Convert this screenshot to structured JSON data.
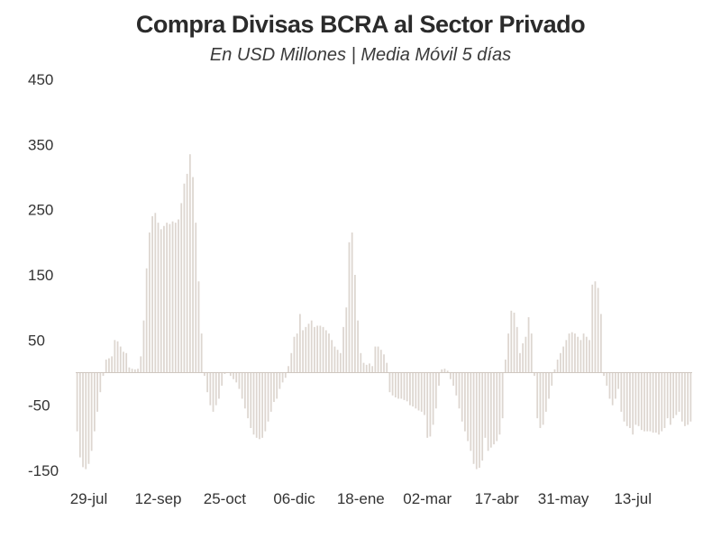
{
  "chart_data": {
    "type": "bar",
    "title": "Compra Divisas BCRA al Sector Privado",
    "subtitle": "En USD Millones | Media Móvil 5 días",
    "xlabel": "",
    "ylabel": "",
    "ylim": [
      -150,
      450
    ],
    "yticks": [
      "450",
      "350",
      "250",
      "150",
      "50",
      "-50",
      "-150"
    ],
    "ytick_values": [
      450,
      350,
      250,
      150,
      50,
      -50,
      -150
    ],
    "xtick_labels": [
      "29-jul",
      "12-sep",
      "25-oct",
      "06-dic",
      "18-ene",
      "02-mar",
      "17-abr",
      "31-may",
      "13-jul"
    ],
    "xtick_index": [
      4,
      28,
      51,
      75,
      98,
      121,
      145,
      168,
      192
    ],
    "bar_color": "#ddd6d0",
    "series": [
      {
        "name": "Media Móvil 5 días",
        "values": [
          -90,
          -130,
          -145,
          -148,
          -140,
          -120,
          -90,
          -60,
          -30,
          -5,
          20,
          22,
          25,
          50,
          48,
          40,
          32,
          30,
          8,
          6,
          5,
          6,
          25,
          80,
          160,
          215,
          240,
          245,
          230,
          220,
          225,
          230,
          228,
          232,
          230,
          235,
          260,
          290,
          305,
          335,
          300,
          230,
          140,
          60,
          -5,
          -30,
          -50,
          -60,
          -50,
          -40,
          -20,
          -2,
          0,
          -5,
          -10,
          -15,
          -25,
          -40,
          -55,
          -70,
          -85,
          -95,
          -100,
          -102,
          -100,
          -90,
          -75,
          -60,
          -45,
          -40,
          -25,
          -15,
          -8,
          10,
          30,
          55,
          60,
          90,
          65,
          70,
          75,
          80,
          70,
          72,
          72,
          70,
          65,
          60,
          50,
          40,
          35,
          30,
          70,
          100,
          200,
          215,
          150,
          80,
          30,
          15,
          12,
          14,
          10,
          40,
          40,
          35,
          28,
          15,
          -30,
          -35,
          -38,
          -40,
          -40,
          -42,
          -44,
          -50,
          -52,
          -55,
          -58,
          -60,
          -65,
          -100,
          -98,
          -80,
          -55,
          -20,
          5,
          6,
          3,
          -10,
          -20,
          -35,
          -55,
          -75,
          -90,
          -105,
          -120,
          -140,
          -148,
          -146,
          -135,
          -100,
          -120,
          -115,
          -110,
          -105,
          -95,
          -70,
          20,
          60,
          95,
          92,
          70,
          30,
          45,
          55,
          85,
          60,
          -5,
          -70,
          -85,
          -80,
          -60,
          -40,
          -20,
          5,
          20,
          30,
          40,
          50,
          60,
          62,
          60,
          55,
          50,
          60,
          55,
          50,
          135,
          140,
          130,
          90,
          -5,
          -20,
          -40,
          -50,
          -40,
          -25,
          -60,
          -75,
          -82,
          -85,
          -95,
          -80,
          -82,
          -88,
          -90,
          -90,
          -90,
          -92,
          -92,
          -95,
          -90,
          -85,
          -70,
          -80,
          -70,
          -65,
          -60,
          -75,
          -82,
          -80,
          -75
        ]
      }
    ]
  }
}
